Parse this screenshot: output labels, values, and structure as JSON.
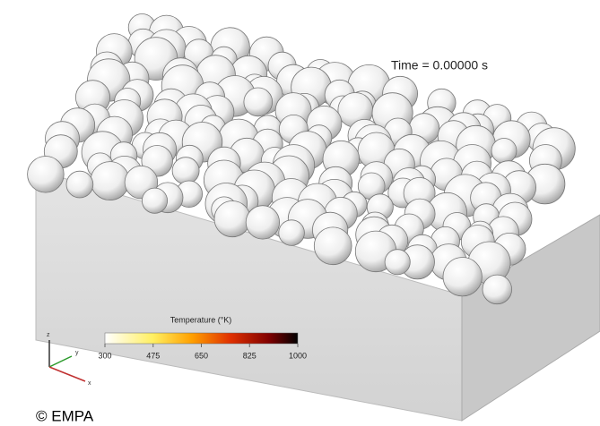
{
  "time_label": "Time = 0.00000 s",
  "colorbar": {
    "title": "Temperature (°K)",
    "range": [
      300,
      1000
    ],
    "ticks": [
      300,
      475,
      650,
      825,
      1000
    ]
  },
  "axes": {
    "z": "z",
    "y": "y",
    "x": "x"
  },
  "credit": "© EMPA"
}
